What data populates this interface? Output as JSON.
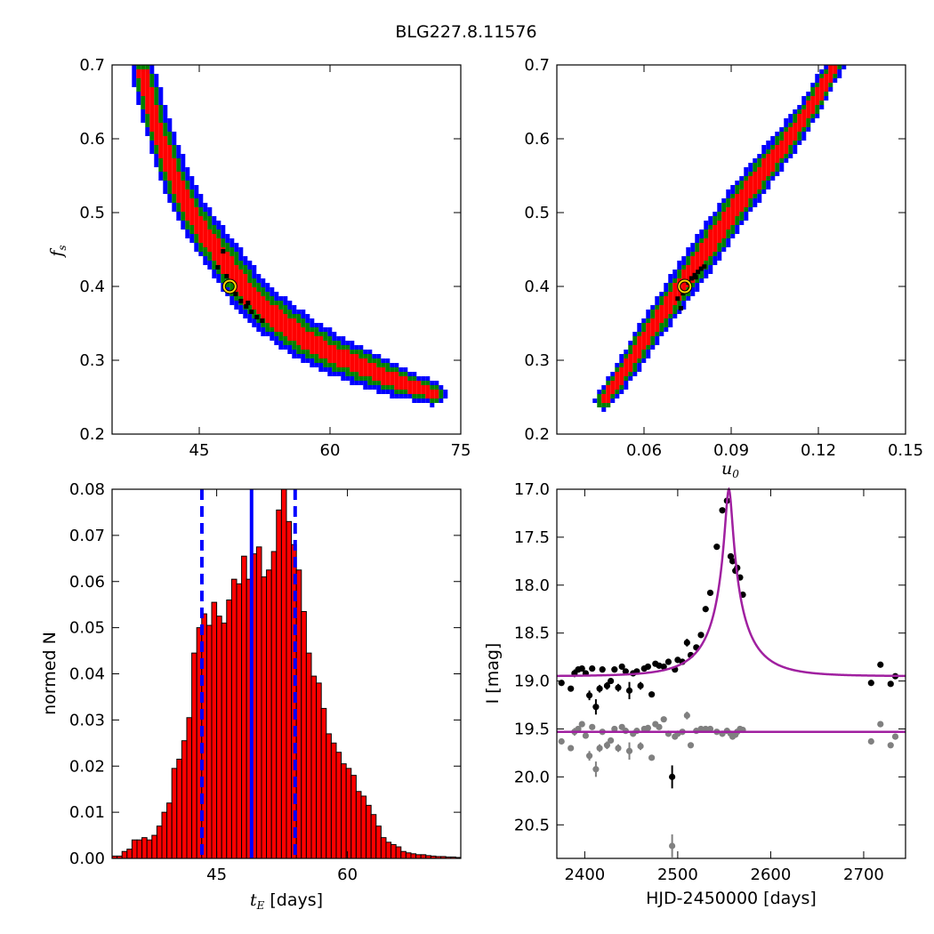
{
  "figure": {
    "title": "BLG227.8.11576"
  },
  "chart_data": [
    {
      "id": "fs_vs_tE",
      "type": "heatmap",
      "xlabel": "",
      "ylabel_main": "f",
      "ylabel_sub": "s",
      "xlim": [
        35,
        75
      ],
      "ylim": [
        0.2,
        0.7
      ],
      "xticks": [
        "45",
        "60",
        "75"
      ],
      "yticks": [
        "0.2",
        "0.3",
        "0.4",
        "0.5",
        "0.6",
        "0.7"
      ],
      "colors": {
        "sigma3": "#0000ff",
        "sigma2": "#008000",
        "sigma1": "#ff0000",
        "samples": "#000000",
        "best": "#ffd700"
      },
      "ridge": [
        [
          38.5,
          0.69
        ],
        [
          40.0,
          0.62
        ],
        [
          42.0,
          0.55
        ],
        [
          44.0,
          0.5
        ],
        [
          46.0,
          0.465
        ],
        [
          48.5,
          0.425
        ],
        [
          51.0,
          0.385
        ],
        [
          54.0,
          0.355
        ],
        [
          57.0,
          0.33
        ],
        [
          60.0,
          0.31
        ],
        [
          64.0,
          0.29
        ],
        [
          68.0,
          0.27
        ],
        [
          72.0,
          0.255
        ]
      ],
      "best_fit": [
        48.5,
        0.4
      ]
    },
    {
      "id": "fs_vs_u0",
      "type": "heatmap",
      "xlabel_main": "u",
      "xlabel_sub": "0",
      "xlim": [
        0.03,
        0.15
      ],
      "ylim": [
        0.2,
        0.7
      ],
      "xticks": [
        "0.06",
        "0.09",
        "0.12",
        "0.15"
      ],
      "yticks": [
        "0.2",
        "0.3",
        "0.4",
        "0.5",
        "0.6",
        "0.7"
      ],
      "colors": {
        "sigma3": "#0000ff",
        "sigma2": "#008000",
        "sigma1": "#ff0000",
        "samples": "#000000",
        "best": "#ffd700"
      },
      "ridge": [
        [
          0.046,
          0.245
        ],
        [
          0.054,
          0.29
        ],
        [
          0.062,
          0.34
        ],
        [
          0.07,
          0.385
        ],
        [
          0.078,
          0.43
        ],
        [
          0.086,
          0.475
        ],
        [
          0.094,
          0.52
        ],
        [
          0.102,
          0.56
        ],
        [
          0.11,
          0.6
        ],
        [
          0.118,
          0.645
        ],
        [
          0.126,
          0.7
        ]
      ],
      "best_fit": [
        0.074,
        0.4
      ]
    },
    {
      "id": "tE_histogram",
      "type": "bar",
      "xlabel_main": "t",
      "xlabel_sub": "E",
      "xlabel_rest": " [days]",
      "ylabel": "normed N",
      "xlim": [
        33,
        73
      ],
      "ylim": [
        0,
        0.08
      ],
      "xticks": [
        "45",
        "60"
      ],
      "yticks": [
        "0.00",
        "0.01",
        "0.02",
        "0.03",
        "0.04",
        "0.05",
        "0.06",
        "0.07",
        "0.08"
      ],
      "bin_start": 33,
      "bin_width": 0.5714,
      "values": [
        0.0005,
        0.0005,
        0.0015,
        0.002,
        0.004,
        0.004,
        0.0045,
        0.004,
        0.005,
        0.007,
        0.01,
        0.012,
        0.0195,
        0.0215,
        0.0255,
        0.0305,
        0.0445,
        0.05,
        0.053,
        0.0505,
        0.0555,
        0.0525,
        0.051,
        0.056,
        0.0605,
        0.0595,
        0.0655,
        0.0605,
        0.066,
        0.0675,
        0.061,
        0.0625,
        0.0665,
        0.0755,
        0.08,
        0.073,
        0.068,
        0.0625,
        0.0535,
        0.0445,
        0.0395,
        0.038,
        0.0325,
        0.027,
        0.025,
        0.023,
        0.0205,
        0.0195,
        0.018,
        0.0145,
        0.0135,
        0.0115,
        0.0095,
        0.007,
        0.0045,
        0.0035,
        0.003,
        0.0025,
        0.0015,
        0.0012,
        0.001,
        0.0008,
        0.0008,
        0.0006,
        0.0005,
        0.0004,
        0.0004,
        0.0003,
        0.0003,
        0.0002
      ],
      "median": 49.0,
      "interval": [
        43.3,
        54.0
      ],
      "bar_color": "#ff0000",
      "line_color": "#0000ff"
    },
    {
      "id": "lightcurve",
      "type": "scatter",
      "xlabel": "HJD-2450000 [days]",
      "ylabel": "I [mag]",
      "xlim": [
        2370,
        2745
      ],
      "ylim": [
        20.85,
        17.0
      ],
      "xticks": [
        "2400",
        "2500",
        "2600",
        "2700"
      ],
      "yticks": [
        "17.0",
        "17.5",
        "18.0",
        "18.5",
        "19.0",
        "19.5",
        "20.0",
        "20.5"
      ],
      "model": {
        "t0": 2555,
        "tE": 49,
        "u0": 0.074,
        "base": 18.95,
        "fs": 0.4
      },
      "baseline2": 19.53,
      "model_color": "#a020a0",
      "series": [
        {
          "color": "#000000",
          "points": [
            [
              2375,
              19.02,
              0.03
            ],
            [
              2385,
              19.08,
              0.03
            ],
            [
              2389,
              18.92,
              0.04
            ],
            [
              2393,
              18.88,
              0.03
            ],
            [
              2397,
              18.87,
              0.03
            ],
            [
              2401,
              18.92,
              0.02
            ],
            [
              2405,
              19.15,
              0.05
            ],
            [
              2408,
              18.87,
              0.03
            ],
            [
              2412,
              19.27,
              0.08
            ],
            [
              2416,
              19.08,
              0.04
            ],
            [
              2419,
              18.88,
              0.03
            ],
            [
              2424,
              19.05,
              0.04
            ],
            [
              2428,
              19.0,
              0.03
            ],
            [
              2432,
              18.88,
              0.03
            ],
            [
              2436,
              19.07,
              0.04
            ],
            [
              2440,
              18.85,
              0.03
            ],
            [
              2444,
              18.9,
              0.03
            ],
            [
              2448,
              19.1,
              0.09
            ],
            [
              2452,
              18.92,
              0.03
            ],
            [
              2456,
              18.9,
              0.03
            ],
            [
              2460,
              19.05,
              0.04
            ],
            [
              2464,
              18.87,
              0.03
            ],
            [
              2468,
              18.85,
              0.03
            ],
            [
              2472,
              19.14,
              0.03
            ],
            [
              2476,
              18.82,
              0.03
            ],
            [
              2480,
              18.84,
              0.03
            ],
            [
              2485,
              18.85,
              0.03
            ],
            [
              2490,
              18.8,
              0.03
            ],
            [
              2494,
              20.0,
              0.12
            ],
            [
              2497,
              18.88,
              0.03
            ],
            [
              2500,
              18.78,
              0.03
            ],
            [
              2505,
              18.8,
              0.03
            ],
            [
              2510,
              18.6,
              0.04
            ],
            [
              2514,
              18.73,
              0.03
            ],
            [
              2520,
              18.65,
              0.03
            ],
            [
              2525,
              18.52,
              0.03
            ],
            [
              2530,
              18.25,
              0.03
            ],
            [
              2535,
              18.08,
              0.03
            ],
            [
              2542,
              17.6,
              0.03
            ],
            [
              2548,
              17.22,
              0.03
            ],
            [
              2553,
              17.12,
              0.03
            ],
            [
              2557,
              17.7,
              0.03
            ],
            [
              2559,
              17.75,
              0.03
            ],
            [
              2562,
              17.85,
              0.03
            ],
            [
              2564,
              17.82,
              0.03
            ],
            [
              2567,
              17.92,
              0.03
            ],
            [
              2570,
              18.1,
              0.03
            ],
            [
              2708,
              19.02,
              0.03
            ],
            [
              2718,
              18.83,
              0.03
            ],
            [
              2729,
              19.03,
              0.03
            ],
            [
              2734,
              18.95,
              0.03
            ]
          ]
        },
        {
          "color": "#808080",
          "points": [
            [
              2375,
              19.63,
              0.03
            ],
            [
              2385,
              19.7,
              0.03
            ],
            [
              2389,
              19.53,
              0.04
            ],
            [
              2393,
              19.5,
              0.03
            ],
            [
              2397,
              19.45,
              0.03
            ],
            [
              2401,
              19.57,
              0.03
            ],
            [
              2405,
              19.78,
              0.05
            ],
            [
              2408,
              19.48,
              0.03
            ],
            [
              2412,
              19.92,
              0.08
            ],
            [
              2416,
              19.7,
              0.04
            ],
            [
              2419,
              19.53,
              0.03
            ],
            [
              2424,
              19.67,
              0.04
            ],
            [
              2428,
              19.62,
              0.03
            ],
            [
              2432,
              19.5,
              0.03
            ],
            [
              2436,
              19.7,
              0.04
            ],
            [
              2440,
              19.48,
              0.03
            ],
            [
              2444,
              19.52,
              0.03
            ],
            [
              2448,
              19.73,
              0.09
            ],
            [
              2452,
              19.55,
              0.03
            ],
            [
              2456,
              19.52,
              0.03
            ],
            [
              2460,
              19.68,
              0.04
            ],
            [
              2464,
              19.5,
              0.03
            ],
            [
              2468,
              19.49,
              0.03
            ],
            [
              2472,
              19.8,
              0.03
            ],
            [
              2476,
              19.45,
              0.03
            ],
            [
              2480,
              19.48,
              0.03
            ],
            [
              2485,
              19.4,
              0.03
            ],
            [
              2490,
              19.55,
              0.03
            ],
            [
              2494,
              20.72,
              0.12
            ],
            [
              2497,
              19.58,
              0.03
            ],
            [
              2500,
              19.55,
              0.03
            ],
            [
              2505,
              19.53,
              0.03
            ],
            [
              2510,
              19.36,
              0.04
            ],
            [
              2514,
              19.67,
              0.03
            ],
            [
              2520,
              19.52,
              0.03
            ],
            [
              2525,
              19.5,
              0.03
            ],
            [
              2530,
              19.5,
              0.03
            ],
            [
              2535,
              19.5,
              0.03
            ],
            [
              2542,
              19.53,
              0.03
            ],
            [
              2548,
              19.55,
              0.03
            ],
            [
              2553,
              19.52,
              0.03
            ],
            [
              2557,
              19.55,
              0.03
            ],
            [
              2559,
              19.58,
              0.03
            ],
            [
              2562,
              19.56,
              0.03
            ],
            [
              2564,
              19.53,
              0.03
            ],
            [
              2567,
              19.5,
              0.03
            ],
            [
              2570,
              19.51,
              0.03
            ],
            [
              2708,
              19.63,
              0.03
            ],
            [
              2718,
              19.45,
              0.03
            ],
            [
              2729,
              19.67,
              0.03
            ],
            [
              2734,
              19.58,
              0.03
            ]
          ]
        }
      ]
    }
  ]
}
